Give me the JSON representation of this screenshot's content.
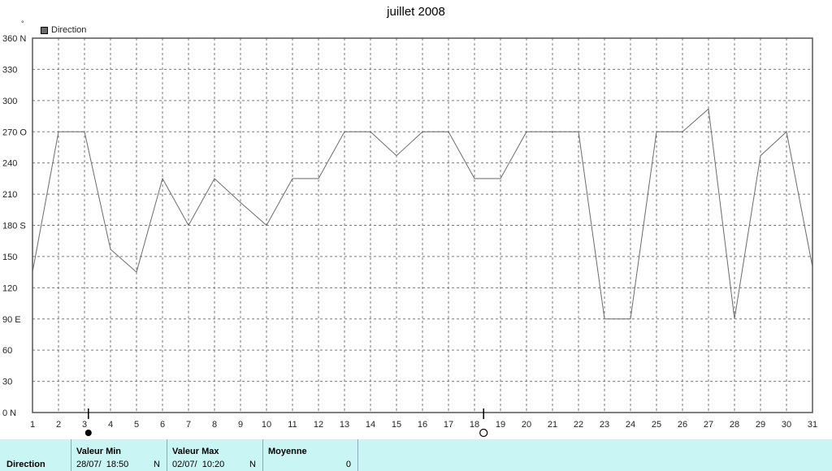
{
  "chart_data": {
    "type": "line",
    "title": "juillet 2008",
    "unit_symbol": "°",
    "series": [
      {
        "name": "Direction",
        "color": "#6b6b6b",
        "x": [
          1,
          2,
          3,
          4,
          5,
          6,
          7,
          8,
          9,
          10,
          11,
          12,
          13,
          14,
          15,
          16,
          17,
          18,
          19,
          20,
          21,
          22,
          23,
          24,
          25,
          26,
          27,
          28,
          29,
          30,
          31
        ],
        "values": [
          135,
          270,
          270,
          157,
          135,
          225,
          180,
          225,
          202,
          180,
          225,
          225,
          270,
          270,
          247,
          270,
          270,
          225,
          225,
          270,
          270,
          270,
          90,
          90,
          270,
          270,
          292,
          90,
          247,
          270,
          140
        ]
      }
    ],
    "xlim": [
      1,
      31
    ],
    "ylim": [
      0,
      360
    ],
    "yticks": [
      {
        "value": 0,
        "label": "0   N"
      },
      {
        "value": 30,
        "label": "30"
      },
      {
        "value": 60,
        "label": "60"
      },
      {
        "value": 90,
        "label": "90   E"
      },
      {
        "value": 120,
        "label": "120"
      },
      {
        "value": 150,
        "label": "150"
      },
      {
        "value": 180,
        "label": "180 S"
      },
      {
        "value": 210,
        "label": "210"
      },
      {
        "value": 240,
        "label": "240"
      },
      {
        "value": 270,
        "label": "270 O"
      },
      {
        "value": 300,
        "label": "300"
      },
      {
        "value": 330,
        "label": "330"
      },
      {
        "value": 360,
        "label": "360 N"
      }
    ],
    "xticks": [
      "1",
      "2",
      "3",
      "4",
      "5",
      "6",
      "7",
      "8",
      "9",
      "10",
      "11",
      "12",
      "13",
      "14",
      "15",
      "16",
      "17",
      "18",
      "19",
      "20",
      "21",
      "22",
      "23",
      "24",
      "25",
      "26",
      "27",
      "28",
      "29",
      "30",
      "31"
    ],
    "grid": true,
    "legend": "top-left",
    "moon_phases": [
      {
        "x": 3.15,
        "phase": "full-moon"
      },
      {
        "x": 18.35,
        "phase": "new-moon"
      }
    ]
  },
  "footer": {
    "row_label": "Direction",
    "min": {
      "header": "Valeur Min",
      "date": "28/07/",
      "time": "18:50",
      "dir": "N"
    },
    "max": {
      "header": "Valeur Max",
      "date": "02/07/",
      "time": "10:20",
      "dir": "N"
    },
    "avg": {
      "header": "Moyenne",
      "value": "0"
    }
  }
}
